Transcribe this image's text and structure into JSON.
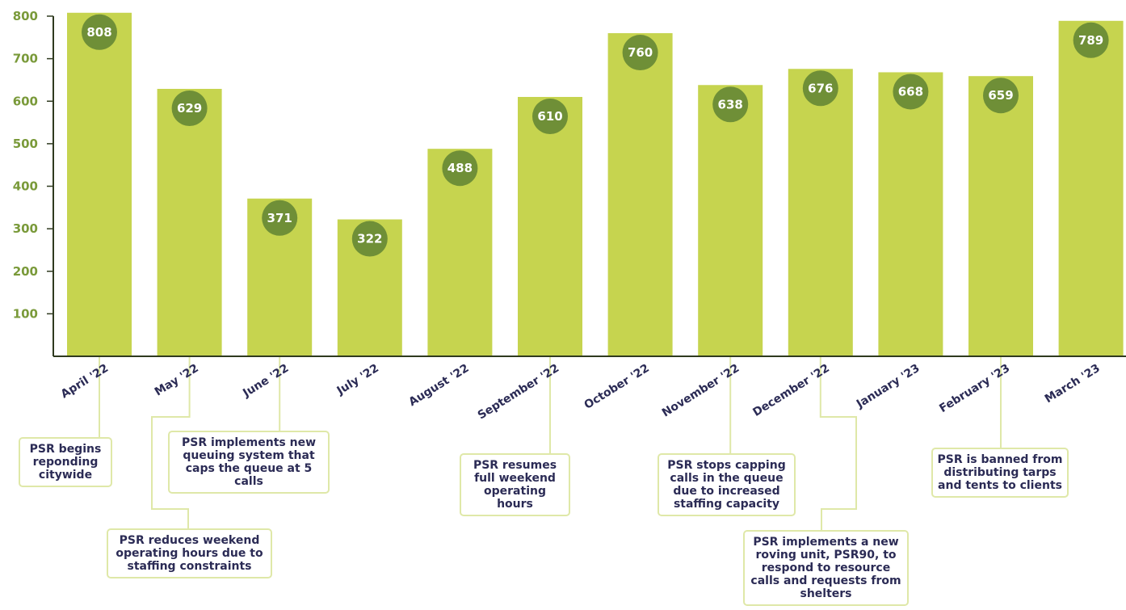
{
  "chart_data": {
    "type": "bar",
    "title": "",
    "xlabel": "",
    "ylabel": "",
    "ylim": [
      0,
      800
    ],
    "yticks": [
      "100",
      "200",
      "300",
      "400",
      "500",
      "600",
      "700",
      "800"
    ],
    "categories": [
      "April '22",
      "May '22",
      "June '22",
      "July '22",
      "August '22",
      "September '22",
      "October '22",
      "November '22",
      "December '22",
      "January '23",
      "February '23",
      "March '23"
    ],
    "values": [
      808,
      629,
      371,
      322,
      488,
      610,
      760,
      638,
      676,
      668,
      659,
      789
    ],
    "data_labels": [
      "808",
      "629",
      "371",
      "322",
      "488",
      "610",
      "760",
      "638",
      "676",
      "668",
      "659",
      "789"
    ],
    "grid": false,
    "legend": "none",
    "colors": {
      "bar": "#c6d44f",
      "label_circle": "#6f8f37",
      "axis": "#2f3a1f",
      "callout_border": "#dfe8a8",
      "text": "#2b2b55"
    }
  },
  "annotations": [
    {
      "category": "April '22",
      "text": "PSR begins reponding citywide"
    },
    {
      "category": "May '22",
      "text": "PSR reduces weekend operating hours due to staffing constraints"
    },
    {
      "category": "June '22",
      "text": "PSR implements new queuing system that caps the queue at 5 calls"
    },
    {
      "category": "September '22",
      "text": "PSR resumes full weekend operating hours"
    },
    {
      "category": "November '22",
      "text": "PSR stops capping calls in the queue due to increased staffing capacity"
    },
    {
      "category": "December '22",
      "text": "PSR implements a new roving unit, PSR90, to respond to resource calls and requests from shelters"
    },
    {
      "category": "February '23",
      "text": "PSR is banned from distributing tarps and tents to clients"
    }
  ]
}
